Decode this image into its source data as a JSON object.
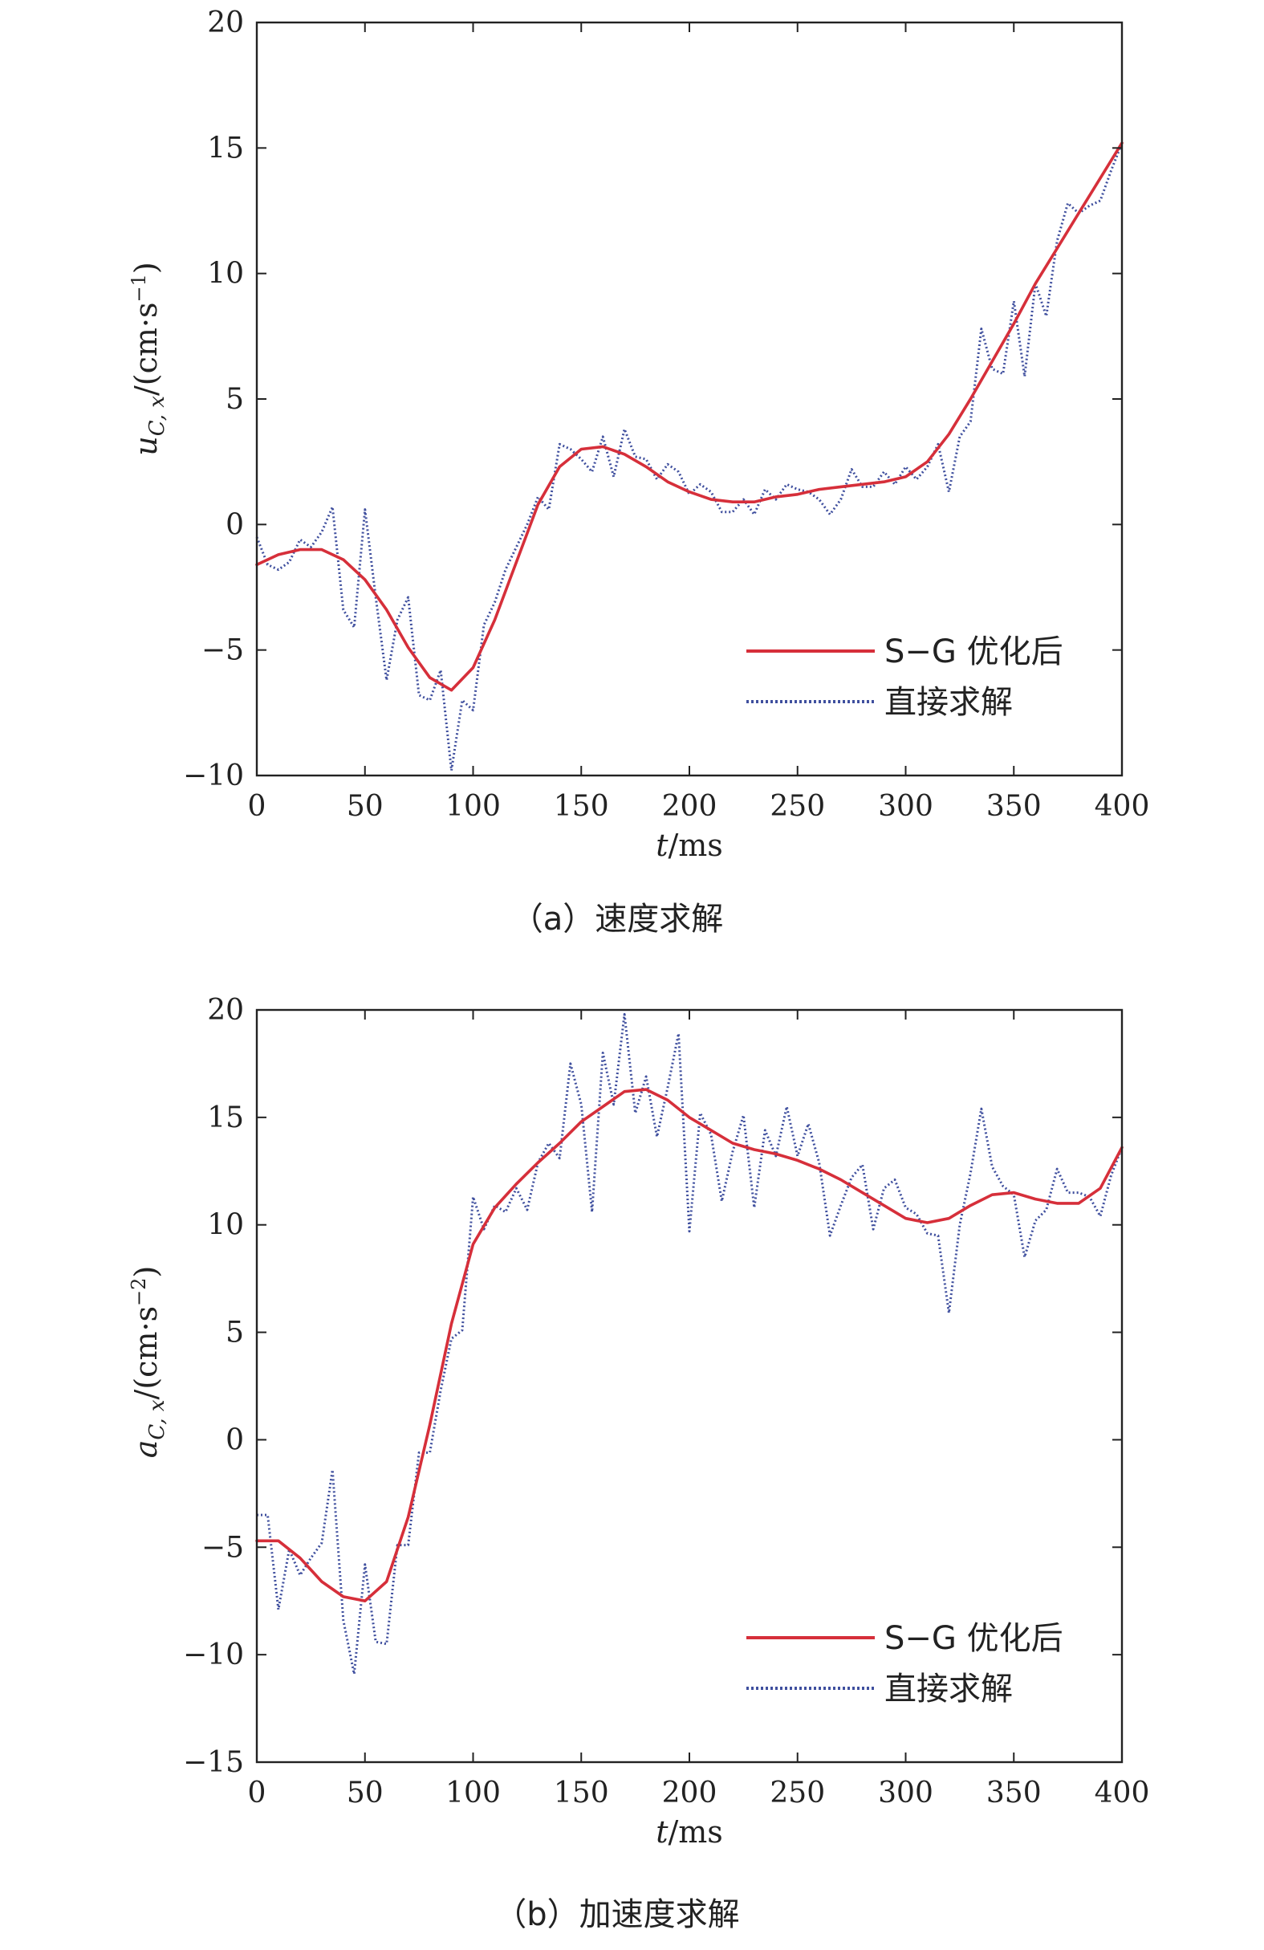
{
  "chart_data": [
    {
      "type": "line",
      "caption": "（a）速度求解",
      "xlabel_var": "t",
      "xlabel_unit": "/ms",
      "ylabel_sym": "u",
      "ylabel_sub": "C, x",
      "ylabel_unit": "/(cm·s",
      "ylabel_exp": "−1",
      "ylabel_close": ")",
      "xlim": [
        0,
        400
      ],
      "ylim": [
        -10,
        20
      ],
      "xticks": [
        0,
        50,
        100,
        150,
        200,
        250,
        300,
        350,
        400
      ],
      "yticks": [
        -10,
        -5,
        0,
        5,
        10,
        15,
        20
      ],
      "xtick_labels": [
        "0",
        "50",
        "100",
        "150",
        "200",
        "250",
        "300",
        "350",
        "400"
      ],
      "ytick_labels": [
        "−10",
        "−5",
        "0",
        "5",
        "10",
        "15",
        "20"
      ],
      "legend_position": "bottom-right",
      "series": [
        {
          "name": "S−G 优化后",
          "color": "#d62f3a",
          "style": "solid",
          "x": [
            0,
            10,
            20,
            30,
            40,
            50,
            60,
            70,
            80,
            90,
            100,
            110,
            120,
            130,
            140,
            150,
            160,
            170,
            180,
            190,
            200,
            210,
            220,
            230,
            240,
            250,
            260,
            270,
            280,
            290,
            300,
            310,
            320,
            330,
            340,
            350,
            360,
            370,
            380,
            390,
            400
          ],
          "y": [
            -1.6,
            -1.2,
            -1.0,
            -1.0,
            -1.4,
            -2.2,
            -3.4,
            -4.9,
            -6.1,
            -6.6,
            -5.7,
            -3.8,
            -1.5,
            0.8,
            2.3,
            3.0,
            3.1,
            2.8,
            2.3,
            1.7,
            1.3,
            1.0,
            0.9,
            0.9,
            1.1,
            1.2,
            1.4,
            1.5,
            1.6,
            1.7,
            1.9,
            2.5,
            3.6,
            5.0,
            6.5,
            8.0,
            9.6,
            11.0,
            12.4,
            13.8,
            15.2
          ]
        },
        {
          "name": "直接求解",
          "color": "#3f4f9e",
          "style": "dotted",
          "x": [
            0,
            5,
            10,
            15,
            20,
            25,
            30,
            35,
            40,
            45,
            50,
            55,
            60,
            65,
            70,
            75,
            80,
            85,
            90,
            95,
            100,
            105,
            110,
            115,
            120,
            125,
            130,
            135,
            140,
            145,
            150,
            155,
            160,
            165,
            170,
            175,
            180,
            185,
            190,
            195,
            200,
            205,
            210,
            215,
            220,
            225,
            230,
            235,
            240,
            245,
            250,
            255,
            260,
            265,
            270,
            275,
            280,
            285,
            290,
            295,
            300,
            305,
            310,
            315,
            320,
            325,
            330,
            335,
            340,
            345,
            350,
            355,
            360,
            365,
            370,
            375,
            380,
            385,
            390,
            395,
            400
          ],
          "y": [
            -0.5,
            -1.6,
            -1.8,
            -1.5,
            -0.6,
            -0.9,
            -0.3,
            0.7,
            -3.4,
            -4.1,
            0.6,
            -2.9,
            -6.2,
            -3.8,
            -2.9,
            -6.8,
            -7.0,
            -5.8,
            -9.8,
            -7.0,
            -7.4,
            -4.0,
            -3.1,
            -1.8,
            -0.9,
            0.0,
            1.1,
            0.6,
            3.2,
            3.0,
            2.6,
            2.1,
            3.5,
            1.9,
            3.8,
            2.7,
            2.6,
            1.8,
            2.4,
            2.1,
            1.2,
            1.6,
            1.3,
            0.5,
            0.5,
            1.0,
            0.4,
            1.4,
            1.0,
            1.6,
            1.4,
            1.3,
            1.0,
            0.4,
            1.0,
            2.2,
            1.5,
            1.5,
            2.1,
            1.6,
            2.3,
            1.8,
            2.3,
            3.2,
            1.3,
            3.5,
            4.1,
            7.8,
            6.2,
            6.0,
            8.9,
            5.9,
            9.6,
            8.3,
            11.3,
            12.8,
            12.4,
            12.7,
            12.9,
            14.1,
            15.2
          ]
        }
      ]
    },
    {
      "type": "line",
      "caption": "（b）加速度求解",
      "xlabel_var": "t",
      "xlabel_unit": "/ms",
      "ylabel_sym": "a",
      "ylabel_sub": "C, x",
      "ylabel_unit": "/(cm·s",
      "ylabel_exp": "−2",
      "ylabel_close": ")",
      "xlim": [
        0,
        400
      ],
      "ylim": [
        -15,
        20
      ],
      "xticks": [
        0,
        50,
        100,
        150,
        200,
        250,
        300,
        350,
        400
      ],
      "yticks": [
        -15,
        -10,
        -5,
        0,
        5,
        10,
        15,
        20
      ],
      "xtick_labels": [
        "0",
        "50",
        "100",
        "150",
        "200",
        "250",
        "300",
        "350",
        "400"
      ],
      "ytick_labels": [
        "−15",
        "−10",
        "−5",
        "0",
        "5",
        "10",
        "15",
        "20"
      ],
      "legend_position": "bottom-right",
      "series": [
        {
          "name": "S−G 优化后",
          "color": "#d62f3a",
          "style": "solid",
          "x": [
            0,
            10,
            20,
            30,
            40,
            50,
            60,
            70,
            80,
            90,
            100,
            110,
            120,
            130,
            140,
            150,
            160,
            170,
            180,
            190,
            200,
            210,
            220,
            230,
            240,
            250,
            260,
            270,
            280,
            290,
            300,
            310,
            320,
            330,
            340,
            350,
            360,
            370,
            380,
            390,
            400
          ],
          "y": [
            -4.7,
            -4.7,
            -5.5,
            -6.6,
            -7.3,
            -7.5,
            -6.6,
            -3.6,
            0.7,
            5.4,
            9.1,
            10.8,
            11.9,
            12.9,
            13.8,
            14.8,
            15.5,
            16.2,
            16.3,
            15.8,
            15.0,
            14.4,
            13.8,
            13.5,
            13.3,
            13.0,
            12.6,
            12.1,
            11.5,
            10.9,
            10.3,
            10.1,
            10.3,
            10.9,
            11.4,
            11.5,
            11.2,
            11.0,
            11.0,
            11.7,
            13.6
          ]
        },
        {
          "name": "直接求解",
          "color": "#3f4f9e",
          "style": "dotted",
          "x": [
            0,
            5,
            10,
            15,
            20,
            25,
            30,
            35,
            40,
            45,
            50,
            55,
            60,
            65,
            70,
            75,
            80,
            85,
            90,
            95,
            100,
            105,
            110,
            115,
            120,
            125,
            130,
            135,
            140,
            145,
            150,
            155,
            160,
            165,
            170,
            175,
            180,
            185,
            190,
            195,
            200,
            205,
            210,
            215,
            220,
            225,
            230,
            235,
            240,
            245,
            250,
            255,
            260,
            265,
            270,
            275,
            280,
            285,
            290,
            295,
            300,
            305,
            310,
            315,
            320,
            325,
            330,
            335,
            340,
            345,
            350,
            355,
            360,
            365,
            370,
            375,
            380,
            385,
            390,
            395,
            400
          ],
          "y": [
            -3.5,
            -3.5,
            -7.9,
            -5.1,
            -6.3,
            -5.5,
            -4.8,
            -1.4,
            -8.4,
            -10.9,
            -5.8,
            -9.4,
            -9.5,
            -4.9,
            -4.9,
            -0.6,
            -0.6,
            2.3,
            4.7,
            5.1,
            11.3,
            9.8,
            10.9,
            10.6,
            11.7,
            10.7,
            12.9,
            13.8,
            13.1,
            17.5,
            15.6,
            10.6,
            18.0,
            15.6,
            19.8,
            15.2,
            16.9,
            14.1,
            16.4,
            18.9,
            9.7,
            15.2,
            14.2,
            11.1,
            13.4,
            15.1,
            10.8,
            14.4,
            13.2,
            15.5,
            13.2,
            14.7,
            12.9,
            9.5,
            10.9,
            12.2,
            12.8,
            9.8,
            11.7,
            12.1,
            10.8,
            10.5,
            9.6,
            9.5,
            5.9,
            10.0,
            12.4,
            15.4,
            12.7,
            11.8,
            11.4,
            8.5,
            10.2,
            10.7,
            12.6,
            11.5,
            11.5,
            11.3,
            10.4,
            12.3,
            13.6
          ]
        }
      ]
    }
  ]
}
